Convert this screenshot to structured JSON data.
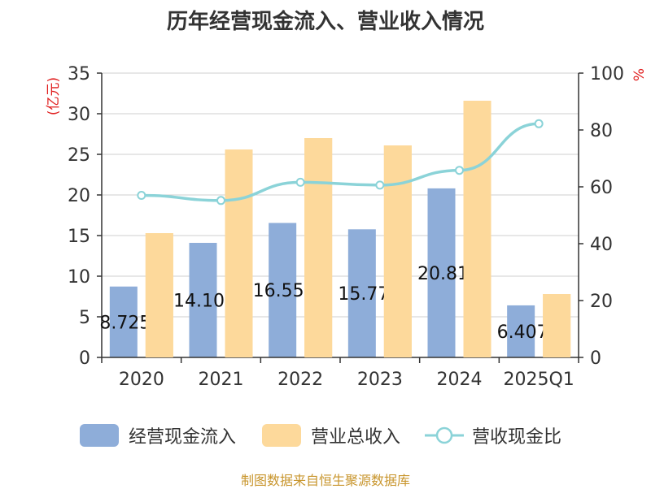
{
  "chart_data": {
    "type": "bar",
    "title": "历年经营现金流入、营业收入情况",
    "categories": [
      "2020",
      "2021",
      "2022",
      "2023",
      "2024",
      "2025Q1"
    ],
    "series": [
      {
        "name": "经营现金流入",
        "axis": "left",
        "kind": "bar",
        "color": "#8eadd9",
        "values": [
          8.725,
          14.103,
          16.554,
          15.77,
          20.81,
          6.407
        ],
        "labels": [
          "8.725",
          "14.103",
          "16.554",
          "15.77",
          "20.81",
          "6.407"
        ]
      },
      {
        "name": "营业总收入",
        "axis": "left",
        "kind": "bar",
        "color": "#fdd99b",
        "values": [
          15.3,
          25.6,
          27.0,
          26.1,
          31.6,
          7.8
        ]
      },
      {
        "name": "营收现金比",
        "axis": "right",
        "kind": "line",
        "color": "#8bd3d8",
        "values": [
          57,
          55.2,
          61.6,
          60.6,
          65.8,
          82.2
        ]
      }
    ],
    "y_left": {
      "label": "(亿元)",
      "min": 0,
      "max": 35,
      "ticks": [
        0,
        5,
        10,
        15,
        20,
        25,
        30,
        35
      ]
    },
    "y_right": {
      "label": "%",
      "min": 0,
      "max": 100,
      "ticks": [
        0,
        20,
        40,
        60,
        80,
        100
      ]
    },
    "grid": true,
    "legend": "bottom"
  },
  "source": "制图数据来自恒生聚源数据库"
}
